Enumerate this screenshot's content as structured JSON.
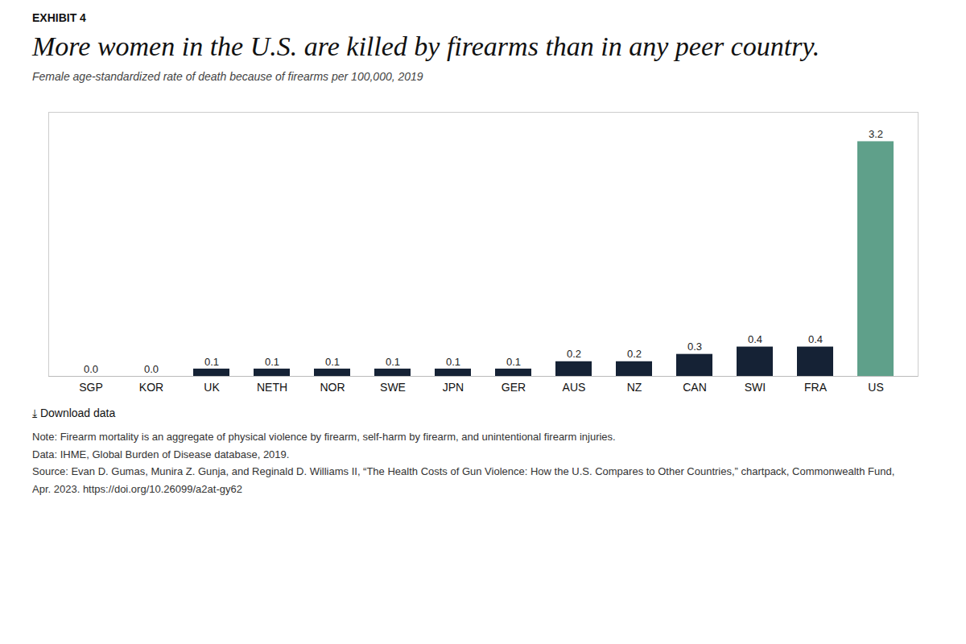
{
  "chart_data": {
    "type": "bar",
    "title": "More women in the U.S. are killed by firearms than in any peer country.",
    "subtitle": "Female age-standardized rate of death because of firearms per 100,000, 2019",
    "categories": [
      "SGP",
      "KOR",
      "UK",
      "NETH",
      "NOR",
      "SWE",
      "JPN",
      "GER",
      "AUS",
      "NZ",
      "CAN",
      "SWI",
      "FRA",
      "US"
    ],
    "values": [
      0.0,
      0.0,
      0.1,
      0.1,
      0.1,
      0.1,
      0.1,
      0.1,
      0.2,
      0.2,
      0.3,
      0.4,
      0.4,
      3.2
    ],
    "value_labels": [
      "0.0",
      "0.0",
      "0.1",
      "0.1",
      "0.1",
      "0.1",
      "0.1",
      "0.1",
      "0.2",
      "0.2",
      "0.3",
      "0.4",
      "0.4",
      "3.2"
    ],
    "colors": [
      "#152235",
      "#152235",
      "#152235",
      "#152235",
      "#152235",
      "#152235",
      "#152235",
      "#152235",
      "#152235",
      "#152235",
      "#152235",
      "#152235",
      "#152235",
      "#5fa08a"
    ],
    "data_labels": true,
    "ylim": [
      0,
      3.6
    ],
    "yticks": [],
    "tick_labels": "x",
    "grid": false,
    "annotations": [
      "EXHIBIT 4",
      "⤓  Download data",
      "Note: Firearm mortality is an aggregate of physical violence by firearm, self-harm by firearm, and unintentional firearm injuries.",
      "Data: IHME, Global Burden of Disease database, 2019.",
      "Source: Evan D. Gumas, Munira Z. Gunja, and Reginald D. Williams II, “The Health Costs of Gun Violence: How the U.S. Compares to Other Countries,” chartpack, Commonwealth Fund,",
      "Apr. 2023. https://doi.org/10.26099/a2at-gy62"
    ]
  }
}
